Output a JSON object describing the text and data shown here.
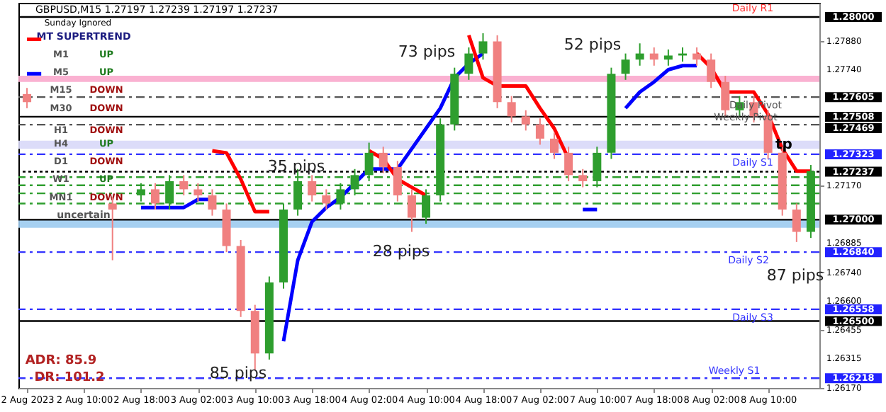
{
  "chart_data": {
    "type": "candlestick",
    "title": "GBPUSD,M15  1.27197 1.27239 1.27197 1.27237",
    "categories": [
      "2 Aug 2023",
      null,
      null,
      null,
      "2 Aug 10:00",
      null,
      null,
      null,
      "2 Aug 18:00",
      null,
      null,
      null,
      "3 Aug 02:00",
      null,
      null,
      null,
      "3 Aug 10:00",
      null,
      null,
      null,
      "3 Aug 18:00",
      null,
      null,
      null,
      "4 Aug 02:00",
      null,
      null,
      null,
      "4 Aug 10:00",
      null,
      null,
      null,
      "4 Aug 18:00",
      null,
      null,
      null,
      "7 Aug 02:00",
      null,
      null,
      null,
      "7 Aug 10:00",
      null,
      null,
      null,
      "7 Aug 18:00",
      null,
      null,
      null,
      "8 Aug 02:00",
      null,
      null,
      null,
      "8 Aug 10:00",
      null,
      null,
      null
    ],
    "ohlc": [
      [
        1.2762,
        1.2765,
        1.2755,
        1.2758
      ],
      null,
      null,
      null,
      null,
      null,
      [
        1.2708,
        1.2711,
        1.268,
        1.2705
      ],
      null,
      [
        1.2712,
        1.2718,
        1.2709,
        1.2715
      ],
      [
        1.2715,
        1.2718,
        1.2705,
        1.2708
      ],
      [
        1.2708,
        1.2722,
        1.2705,
        1.2719
      ],
      [
        1.2719,
        1.2722,
        1.2712,
        1.2715
      ],
      [
        1.2715,
        1.2718,
        1.2709,
        1.2712
      ],
      [
        1.2712,
        1.2715,
        1.2702,
        1.2705
      ],
      [
        1.2705,
        1.2708,
        1.2684,
        1.2687
      ],
      [
        1.2687,
        1.269,
        1.2652,
        1.2655
      ],
      [
        1.2655,
        1.2658,
        1.2626,
        1.2634
      ],
      [
        1.2634,
        1.2672,
        1.2631,
        1.2669
      ],
      [
        1.2669,
        1.2708,
        1.2666,
        1.2705
      ],
      [
        1.2705,
        1.2725,
        1.2702,
        1.2719
      ],
      [
        1.2719,
        1.2722,
        1.2709,
        1.2712
      ],
      [
        1.2712,
        1.2715,
        1.2705,
        1.2708
      ],
      [
        1.2708,
        1.2718,
        1.2705,
        1.2715
      ],
      [
        1.2715,
        1.2725,
        1.2712,
        1.2722
      ],
      [
        1.2722,
        1.2738,
        1.2719,
        1.2733
      ],
      [
        1.2733,
        1.2736,
        1.2723,
        1.2726
      ],
      [
        1.2726,
        1.2729,
        1.2709,
        1.2712
      ],
      [
        1.2712,
        1.2715,
        1.2694,
        1.2701
      ],
      [
        1.2701,
        1.2715,
        1.2698,
        1.2712
      ],
      [
        1.2712,
        1.275,
        1.2709,
        1.2747
      ],
      [
        1.2747,
        1.2775,
        1.2744,
        1.2772
      ],
      [
        1.2772,
        1.2785,
        1.2769,
        1.2782
      ],
      [
        1.2782,
        1.2792,
        1.2779,
        1.2788
      ],
      [
        1.2788,
        1.2791,
        1.2755,
        1.2758
      ],
      [
        1.2758,
        1.2761,
        1.2748,
        1.2751
      ],
      [
        1.2751,
        1.2754,
        1.2744,
        1.2747
      ],
      [
        1.2747,
        1.275,
        1.2737,
        1.274
      ],
      [
        1.274,
        1.2743,
        1.273,
        1.2733
      ],
      [
        1.2733,
        1.2736,
        1.2719,
        1.2722
      ],
      [
        1.2722,
        1.2725,
        1.2716,
        1.2719
      ],
      [
        1.2719,
        1.2736,
        1.2716,
        1.2733
      ],
      [
        1.2733,
        1.2775,
        1.273,
        1.2772
      ],
      [
        1.2772,
        1.2782,
        1.2769,
        1.2779
      ],
      [
        1.2779,
        1.2787,
        1.2776,
        1.2782
      ],
      [
        1.2782,
        1.2785,
        1.2776,
        1.2779
      ],
      [
        1.2779,
        1.2784,
        1.2776,
        1.2781
      ],
      [
        1.2781,
        1.2785,
        1.2778,
        1.2782
      ],
      [
        1.2782,
        1.2785,
        1.2776,
        1.2779
      ],
      [
        1.2779,
        1.2782,
        1.2765,
        1.2768
      ],
      [
        1.2768,
        1.2771,
        1.2751,
        1.2754
      ],
      [
        1.2754,
        1.2761,
        1.2751,
        1.2758
      ],
      [
        1.2758,
        1.2761,
        1.2748,
        1.2751
      ],
      [
        1.2751,
        1.2754,
        1.273,
        1.2733
      ],
      [
        1.2733,
        1.2736,
        1.2702,
        1.2705
      ],
      [
        1.2705,
        1.2708,
        1.2689,
        1.2694
      ],
      [
        1.2694,
        1.2727,
        1.2691,
        1.2724
      ]
    ],
    "colors": [
      "#f08080",
      null,
      null,
      null,
      null,
      null,
      "#f08080",
      null,
      "#2e9e2e",
      "#f08080",
      "#2e9e2e",
      "#f08080",
      "#f08080",
      "#f08080",
      "#f08080",
      "#f08080",
      "#f08080",
      "#2e9e2e",
      "#2e9e2e",
      "#2e9e2e",
      "#f08080",
      "#f08080",
      "#2e9e2e",
      "#2e9e2e",
      "#2e9e2e",
      "#f08080",
      "#f08080",
      "#f08080",
      "#2e9e2e",
      "#2e9e2e",
      "#2e9e2e",
      "#2e9e2e",
      "#2e9e2e",
      "#f08080",
      "#f08080",
      "#f08080",
      "#f08080",
      "#f08080",
      "#f08080",
      "#f08080",
      "#2e9e2e",
      "#2e9e2e",
      "#2e9e2e",
      "#2e9e2e",
      "#f08080",
      "#2e9e2e",
      "#2e9e2e",
      "#f08080",
      "#f08080",
      "#f08080",
      "#2e9e2e",
      "#f08080",
      "#f08080",
      "#f08080",
      "#f08080",
      "#2e9e2e"
    ],
    "series": [
      {
        "type": "line",
        "color": "#0000ff",
        "values": [
          1.2772,
          1.2772,
          null,
          null,
          null,
          null,
          null,
          null,
          1.2706,
          1.2706,
          1.2706,
          1.2706,
          1.271,
          1.271,
          null,
          null,
          null,
          null,
          1.264,
          1.268,
          1.2699,
          1.2706,
          1.2711,
          1.2718,
          1.2725,
          1.2725,
          1.2725,
          1.2735,
          1.2745,
          1.2755,
          1.277,
          1.2777,
          1.2782,
          null,
          null,
          null,
          null,
          null,
          null,
          1.2705,
          1.2705,
          null,
          1.2755,
          1.2763,
          1.2768,
          1.2774,
          1.2776,
          1.2776,
          null,
          null,
          null,
          null,
          null,
          null,
          null,
          null
        ]
      },
      {
        "type": "line",
        "color": "#ff0000",
        "values": [
          1.2789,
          1.2789,
          null,
          null,
          null,
          null,
          null,
          null,
          null,
          null,
          null,
          null,
          null,
          1.2734,
          1.2733,
          1.272,
          1.2704,
          1.2704,
          null,
          null,
          null,
          null,
          null,
          null,
          1.2734,
          1.273,
          1.272,
          1.2716,
          1.2712,
          null,
          null,
          1.2791,
          1.277,
          1.2766,
          1.2766,
          1.2766,
          1.2755,
          1.2745,
          1.273,
          null,
          null,
          null,
          null,
          null,
          null,
          null,
          null,
          1.2782,
          1.2775,
          1.2763,
          1.2763,
          1.2763,
          1.2752,
          1.2735,
          1.2724,
          1.2724
        ]
      }
    ],
    "ylim": [
      1.2617,
      1.2807
    ],
    "yticks": [
      {
        "value": 1.2788,
        "label": "1.27880"
      },
      {
        "value": 1.2774,
        "label": "1.27740"
      },
      {
        "value": 1.2717,
        "label": "1.27170"
      },
      {
        "value": 1.26885,
        "label": "1.26885"
      },
      {
        "value": 1.2674,
        "label": "1.26740"
      },
      {
        "value": 1.266,
        "label": "1.26600"
      },
      {
        "value": 1.26455,
        "label": "1.26455"
      },
      {
        "value": 1.26315,
        "label": "1.26315"
      },
      {
        "value": 1.2617,
        "label": "1.26170"
      }
    ],
    "ref_lines": [
      {
        "axis": "y",
        "value": 1.28,
        "label": "1.28000",
        "color": "#000000",
        "line_style": "solid"
      },
      {
        "axis": "y",
        "value": 1.27605,
        "label": "1.27605",
        "color": "#555555",
        "line_style": "dashed"
      },
      {
        "axis": "y",
        "value": 1.27508,
        "label": "1.27508",
        "color": "#000000",
        "line_style": "solid"
      },
      {
        "axis": "y",
        "value": 1.27469,
        "label": "1.27469",
        "color": "#555555",
        "line_style": "dashed"
      },
      {
        "axis": "y",
        "value": 1.27323,
        "label": "1.27323",
        "color": "#3333ff",
        "line_style": "dashed"
      },
      {
        "axis": "y",
        "value": 1.27237,
        "label": "1.27237",
        "color": "#000000",
        "line_style": "dotted"
      },
      {
        "axis": "y",
        "value": 1.2721,
        "color": "#2e9e2e",
        "line_style": "dashed"
      },
      {
        "axis": "y",
        "value": 1.2717,
        "color": "#2e9e2e",
        "line_style": "dashed"
      },
      {
        "axis": "y",
        "value": 1.2713,
        "color": "#2e9e2e",
        "line_style": "dashed"
      },
      {
        "axis": "y",
        "value": 1.2708,
        "color": "#2e9e2e",
        "line_style": "dashed"
      },
      {
        "axis": "y",
        "value": 1.27,
        "label": "1.27000",
        "color": "#000000",
        "line_style": "solid"
      },
      {
        "axis": "y",
        "value": 1.2684,
        "label": "1.26840",
        "color": "#3333ff",
        "line_style": "dashed"
      },
      {
        "axis": "y",
        "value": 1.26558,
        "label": "1.26558",
        "color": "#3333ff",
        "line_style": "dashed"
      },
      {
        "axis": "y",
        "value": 1.265,
        "label": "1.26500",
        "color": "#000000",
        "line_style": "solid"
      },
      {
        "axis": "y",
        "value": 1.26218,
        "label": "1.26218",
        "color": "#3333ff",
        "line_style": "dashed"
      }
    ],
    "bands": [
      {
        "axis": "y",
        "from": 1.2768,
        "to": 1.2771,
        "color": "#f9a8cc"
      },
      {
        "axis": "y",
        "from": 1.2735,
        "to": 1.2739,
        "color": "#d8d8f8"
      },
      {
        "axis": "y",
        "from": 1.2696,
        "to": 1.27,
        "color": "#9ccbf0"
      }
    ],
    "annotations": [
      {
        "text": "35 pips",
        "y": 1.2726
      },
      {
        "text": "28 pips",
        "y": 1.2684
      },
      {
        "text": "85 pips",
        "y": 1.2624
      },
      {
        "text": "tp",
        "y": 1.2737
      },
      {
        "text": "Daily Pivot",
        "y": 1.27605
      },
      {
        "text": "Weekly Pivot",
        "y": 1.27469
      },
      {
        "text": "Daily S1",
        "y": 1.27323
      },
      {
        "text": "Daily S2",
        "y": 1.2684
      },
      {
        "text": "Daily S3",
        "y": 1.26558
      },
      {
        "text": "Weekly S1",
        "y": 1.26218
      },
      "73 pips",
      "52 pips",
      "87 pips",
      "Daily R1",
      "Sunday Ignored",
      "MT SUPERTREND",
      "M1",
      "UP",
      "M5",
      "UP",
      "M15",
      "DOWN",
      "M30",
      "DOWN",
      "H1",
      "DOWN",
      "H4",
      "UP",
      "D1",
      "DOWN",
      "W1",
      "UP",
      "MN1",
      "DOWN",
      "uncertain",
      "ADR: 85.9",
      "DR: 101.2"
    ],
    "grid": false
  }
}
